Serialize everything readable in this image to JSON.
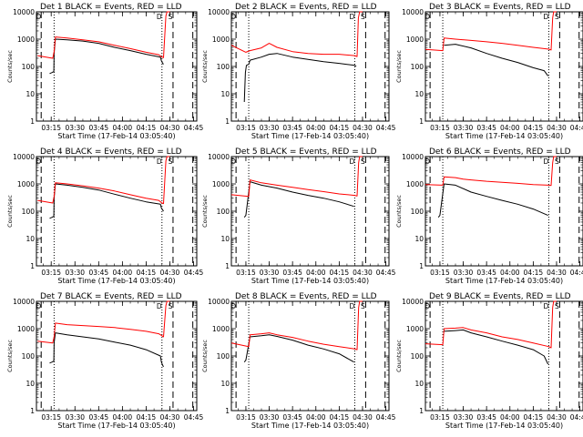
{
  "colors": {
    "events": "#000000",
    "lld": "#ff0000",
    "axes": "#000000",
    "background": "#ffffff"
  },
  "chart_data": {
    "type": "line",
    "y_scale": "log",
    "ylim": [
      1,
      10000
    ],
    "xlim": [
      "03:05:40",
      "04:47:00"
    ],
    "ylabel": "Counts/sec",
    "xlabel": "Start Time (17-Feb-14 03:05:40)",
    "x_tick_labels": [
      "03:15",
      "03:30",
      "03:45",
      "04:00",
      "04:15",
      "04:30",
      "04:45"
    ],
    "x_tick_values": [
      "03:15",
      "03:30",
      "03:45",
      "04:00",
      "04:15",
      "04:30",
      "04:45"
    ],
    "y_tick_labels": [
      "1",
      "10",
      "100",
      "1000",
      "10000"
    ],
    "y_tick_values": [
      1,
      10,
      100,
      1000,
      10000
    ],
    "panels": [
      {
        "title": "Det  1 BLACK = Events, RED = LLD",
        "markers": {
          "dashed": [
            "03:08:40",
            "04:32:00",
            "04:44:30"
          ],
          "dotted": [
            "03:16:50",
            "04:25:00"
          ]
        },
        "annotations": [
          "D",
          "D",
          "S"
        ],
        "series": [
          {
            "name": "Events",
            "color": "#000000",
            "times": [
              "03:14:00",
              "03:15:30",
              "03:16:40",
              "03:16:50",
              "03:17:40",
              "03:25:00",
              "03:35:00",
              "03:45:00",
              "03:55:00",
              "04:05:00",
              "04:15:00",
              "04:24:00",
              "04:24:40",
              "04:25:30",
              "04:26:00"
            ],
            "values": [
              55,
              60,
              65,
              300,
              1000,
              950,
              850,
              700,
              500,
              380,
              280,
              220,
              160,
              130,
              120
            ]
          },
          {
            "name": "LLD",
            "color": "#ff0000",
            "times": [
              "03:06:20",
              "03:16:00",
              "03:16:50",
              "03:17:40",
              "03:25:00",
              "03:35:00",
              "03:45:00",
              "03:55:00",
              "04:05:00",
              "04:15:00",
              "04:23:00",
              "04:25:00",
              "04:26:00",
              "04:27:30",
              "04:28:10",
              "04:30:00"
            ],
            "values": [
              250,
              200,
              350,
              1200,
              1100,
              950,
              800,
              600,
              450,
              330,
              270,
              220,
              210,
              7000,
              10000,
              10000
            ]
          }
        ]
      },
      {
        "title": "Det  2 BLACK = Events, RED = LLD",
        "markers": {
          "dashed": [
            "03:08:40",
            "04:32:00",
            "04:44:30"
          ],
          "dotted": [
            "03:16:50",
            "04:25:00"
          ]
        },
        "annotations": [
          "D",
          "D",
          "S"
        ],
        "series": [
          {
            "name": "Events",
            "color": "#000000",
            "times": [
              "03:14:00",
              "03:14:40",
              "03:15:20",
              "03:16:50",
              "03:17:40",
              "03:25:00",
              "03:30:00",
              "03:35:00",
              "03:45:00",
              "03:55:00",
              "04:05:00",
              "04:15:00",
              "04:25:00",
              "04:26:00"
            ],
            "values": [
              5,
              60,
              110,
              120,
              170,
              220,
              280,
              300,
              220,
              180,
              150,
              130,
              110,
              100
            ]
          },
          {
            "name": "LLD",
            "color": "#ff0000",
            "times": [
              "03:05:40",
              "03:15:00",
              "03:17:40",
              "03:25:00",
              "03:30:00",
              "03:35:00",
              "03:45:00",
              "03:55:00",
              "04:05:00",
              "04:15:00",
              "04:25:00",
              "04:26:30",
              "04:27:20",
              "04:28:10",
              "04:30:00"
            ],
            "values": [
              600,
              330,
              380,
              480,
              700,
              500,
              350,
              300,
              280,
              280,
              250,
              230,
              6000,
              10000,
              10000
            ]
          }
        ]
      },
      {
        "title": "Det  3 BLACK = Events, RED = LLD",
        "markers": {
          "dashed": [
            "03:08:40",
            "04:32:00",
            "04:44:30"
          ],
          "dotted": [
            "03:16:50",
            "04:25:00"
          ]
        },
        "annotations": [
          "D",
          "D",
          "S"
        ],
        "series": [
          {
            "name": "Events",
            "color": "#000000",
            "times": [
              "03:17:40",
              "03:25:00",
              "03:35:00",
              "03:45:00",
              "03:55:00",
              "04:05:00",
              "04:15:00",
              "04:22:00",
              "04:24:30"
            ],
            "values": [
              600,
              650,
              480,
              300,
              200,
              140,
              90,
              70,
              45
            ]
          },
          {
            "name": "LLD",
            "color": "#ff0000",
            "times": [
              "03:05:40",
              "03:16:50",
              "03:17:40",
              "03:25:00",
              "03:35:00",
              "03:45:00",
              "03:55:00",
              "04:05:00",
              "04:15:00",
              "04:25:00",
              "04:26:30",
              "04:27:30",
              "04:28:10",
              "04:30:00"
            ],
            "values": [
              420,
              380,
              1100,
              1000,
              900,
              800,
              700,
              600,
              500,
              430,
              400,
              6000,
              10000,
              10000
            ]
          }
        ]
      },
      {
        "title": "Det  4 BLACK = Events, RED = LLD",
        "markers": {
          "dashed": [
            "03:08:40",
            "04:32:00",
            "04:44:30"
          ],
          "dotted": [
            "03:16:50",
            "04:25:00"
          ]
        },
        "annotations": [
          "D",
          "D",
          "S"
        ],
        "series": [
          {
            "name": "Events",
            "color": "#000000",
            "times": [
              "03:14:00",
              "03:15:30",
              "03:16:40",
              "03:16:50",
              "03:17:40",
              "03:25:00",
              "03:35:00",
              "03:45:00",
              "03:55:00",
              "04:05:00",
              "04:15:00",
              "04:24:00",
              "04:24:40",
              "04:25:30",
              "04:26:00"
            ],
            "values": [
              55,
              60,
              65,
              300,
              1000,
              900,
              750,
              600,
              420,
              300,
              220,
              180,
              130,
              110,
              100
            ]
          },
          {
            "name": "LLD",
            "color": "#ff0000",
            "times": [
              "03:06:20",
              "03:16:00",
              "03:16:50",
              "03:17:40",
              "03:25:00",
              "03:35:00",
              "03:45:00",
              "03:55:00",
              "04:05:00",
              "04:15:00",
              "04:23:00",
              "04:25:00",
              "04:26:00",
              "04:27:30",
              "04:28:10",
              "04:30:00"
            ],
            "values": [
              250,
              200,
              350,
              1100,
              1000,
              850,
              700,
              550,
              400,
              300,
              250,
              200,
              190,
              7000,
              10000,
              10000
            ]
          }
        ]
      },
      {
        "title": "Det  5 BLACK = Events, RED = LLD",
        "markers": {
          "dashed": [
            "03:08:40",
            "04:32:00",
            "04:44:30"
          ],
          "dotted": [
            "03:16:50",
            "04:25:00"
          ]
        },
        "annotations": [
          "D",
          "D",
          "S"
        ],
        "series": [
          {
            "name": "Events",
            "color": "#000000",
            "times": [
              "03:14:00",
              "03:15:00",
              "03:17:40",
              "03:25:00",
              "03:35:00",
              "03:45:00",
              "03:55:00",
              "04:05:00",
              "04:15:00",
              "04:24:30"
            ],
            "values": [
              60,
              70,
              1200,
              900,
              700,
              500,
              380,
              300,
              220,
              150
            ]
          },
          {
            "name": "LLD",
            "color": "#ff0000",
            "times": [
              "03:05:40",
              "03:16:50",
              "03:17:40",
              "03:25:00",
              "03:35:00",
              "03:45:00",
              "03:55:00",
              "04:05:00",
              "04:15:00",
              "04:25:00",
              "04:26:30",
              "04:27:30",
              "04:28:10",
              "04:30:00"
            ],
            "values": [
              400,
              350,
              1400,
              1100,
              900,
              750,
              620,
              520,
              430,
              380,
              360,
              6000,
              10000,
              10000
            ]
          }
        ]
      },
      {
        "title": "Det  6 BLACK = Events, RED = LLD",
        "markers": {
          "dashed": [
            "03:08:40",
            "04:32:00",
            "04:44:30"
          ],
          "dotted": [
            "03:16:50",
            "04:25:00"
          ]
        },
        "annotations": [
          "D",
          "D",
          "S"
        ],
        "series": [
          {
            "name": "Events",
            "color": "#000000",
            "times": [
              "03:14:00",
              "03:15:00",
              "03:17:40",
              "03:25:00",
              "03:35:00",
              "03:45:00",
              "03:55:00",
              "04:05:00",
              "04:15:00",
              "04:24:30"
            ],
            "values": [
              60,
              70,
              1000,
              900,
              500,
              350,
              250,
              180,
              120,
              70
            ]
          },
          {
            "name": "LLD",
            "color": "#ff0000",
            "times": [
              "03:05:40",
              "03:16:50",
              "03:17:40",
              "03:25:00",
              "03:30:00",
              "03:35:00",
              "03:45:00",
              "03:55:00",
              "04:05:00",
              "04:15:00",
              "04:25:00",
              "04:26:30",
              "04:27:30",
              "04:28:10",
              "04:30:00"
            ],
            "values": [
              950,
              900,
              1800,
              1700,
              1500,
              1400,
              1250,
              1150,
              1050,
              950,
              900,
              880,
              6000,
              10000,
              10000
            ]
          }
        ]
      },
      {
        "title": "Det  7 BLACK = Events, RED = LLD",
        "markers": {
          "dashed": [
            "03:08:40",
            "04:32:00",
            "04:44:30"
          ],
          "dotted": [
            "03:16:50",
            "04:25:00"
          ]
        },
        "annotations": [
          "D",
          "D",
          "S"
        ],
        "series": [
          {
            "name": "Events",
            "color": "#000000",
            "times": [
              "03:14:00",
              "03:15:30",
              "03:16:40",
              "03:16:50",
              "03:17:40",
              "03:25:00",
              "03:35:00",
              "03:45:00",
              "03:55:00",
              "04:05:00",
              "04:15:00",
              "04:24:00",
              "04:24:40",
              "04:25:30",
              "04:26:00"
            ],
            "values": [
              55,
              60,
              65,
              300,
              700,
              600,
              500,
              420,
              320,
              250,
              170,
              100,
              60,
              45,
              40
            ]
          },
          {
            "name": "LLD",
            "color": "#ff0000",
            "times": [
              "03:06:20",
              "03:16:00",
              "03:16:50",
              "03:17:40",
              "03:25:00",
              "03:35:00",
              "03:45:00",
              "03:55:00",
              "04:05:00",
              "04:15:00",
              "04:23:00",
              "04:25:00",
              "04:26:00",
              "04:27:30",
              "04:28:10",
              "04:30:00"
            ],
            "values": [
              350,
              300,
              500,
              1600,
              1400,
              1300,
              1200,
              1100,
              950,
              800,
              650,
              550,
              500,
              7000,
              10000,
              10000
            ]
          }
        ]
      },
      {
        "title": "Det  8 BLACK = Events, RED = LLD",
        "markers": {
          "dashed": [
            "03:08:40",
            "04:32:00",
            "04:44:30"
          ],
          "dotted": [
            "03:16:50",
            "04:25:00"
          ]
        },
        "annotations": [
          "D",
          "D",
          "S"
        ],
        "series": [
          {
            "name": "Events",
            "color": "#000000",
            "times": [
              "03:14:00",
              "03:15:00",
              "03:17:40",
              "03:25:00",
              "03:30:00",
              "03:35:00",
              "03:45:00",
              "03:55:00",
              "04:05:00",
              "04:15:00",
              "04:24:30"
            ],
            "values": [
              60,
              70,
              500,
              550,
              600,
              520,
              380,
              250,
              180,
              120,
              60
            ]
          },
          {
            "name": "LLD",
            "color": "#ff0000",
            "times": [
              "03:05:40",
              "03:16:50",
              "03:17:40",
              "03:25:00",
              "03:30:00",
              "03:35:00",
              "03:45:00",
              "03:55:00",
              "04:05:00",
              "04:15:00",
              "04:25:00",
              "04:26:30",
              "04:27:30",
              "04:28:10",
              "04:30:00"
            ],
            "values": [
              300,
              220,
              600,
              650,
              700,
              600,
              480,
              350,
              270,
              220,
              180,
              170,
              6000,
              10000,
              10000
            ]
          }
        ]
      },
      {
        "title": "Det  9 BLACK = Events, RED = LLD",
        "markers": {
          "dashed": [
            "03:08:40",
            "04:32:00",
            "04:44:30"
          ],
          "dotted": [
            "03:16:50",
            "04:25:00"
          ]
        },
        "annotations": [
          "D",
          "D",
          "S"
        ],
        "series": [
          {
            "name": "Events",
            "color": "#000000",
            "times": [
              "03:17:40",
              "03:25:00",
              "03:30:00",
              "03:35:00",
              "03:45:00",
              "03:55:00",
              "04:05:00",
              "04:15:00",
              "04:22:00",
              "04:24:30"
            ],
            "values": [
              800,
              850,
              900,
              700,
              500,
              350,
              250,
              170,
              100,
              50
            ]
          },
          {
            "name": "LLD",
            "color": "#ff0000",
            "times": [
              "03:05:40",
              "03:16:50",
              "03:17:40",
              "03:25:00",
              "03:30:00",
              "03:35:00",
              "03:45:00",
              "03:55:00",
              "04:05:00",
              "04:15:00",
              "04:25:00",
              "04:26:30",
              "04:27:30",
              "04:28:10",
              "04:30:00"
            ],
            "values": [
              280,
              260,
              1000,
              1050,
              1100,
              900,
              700,
              500,
              400,
              300,
              220,
              200,
              6000,
              10000,
              10000
            ]
          }
        ]
      }
    ]
  }
}
